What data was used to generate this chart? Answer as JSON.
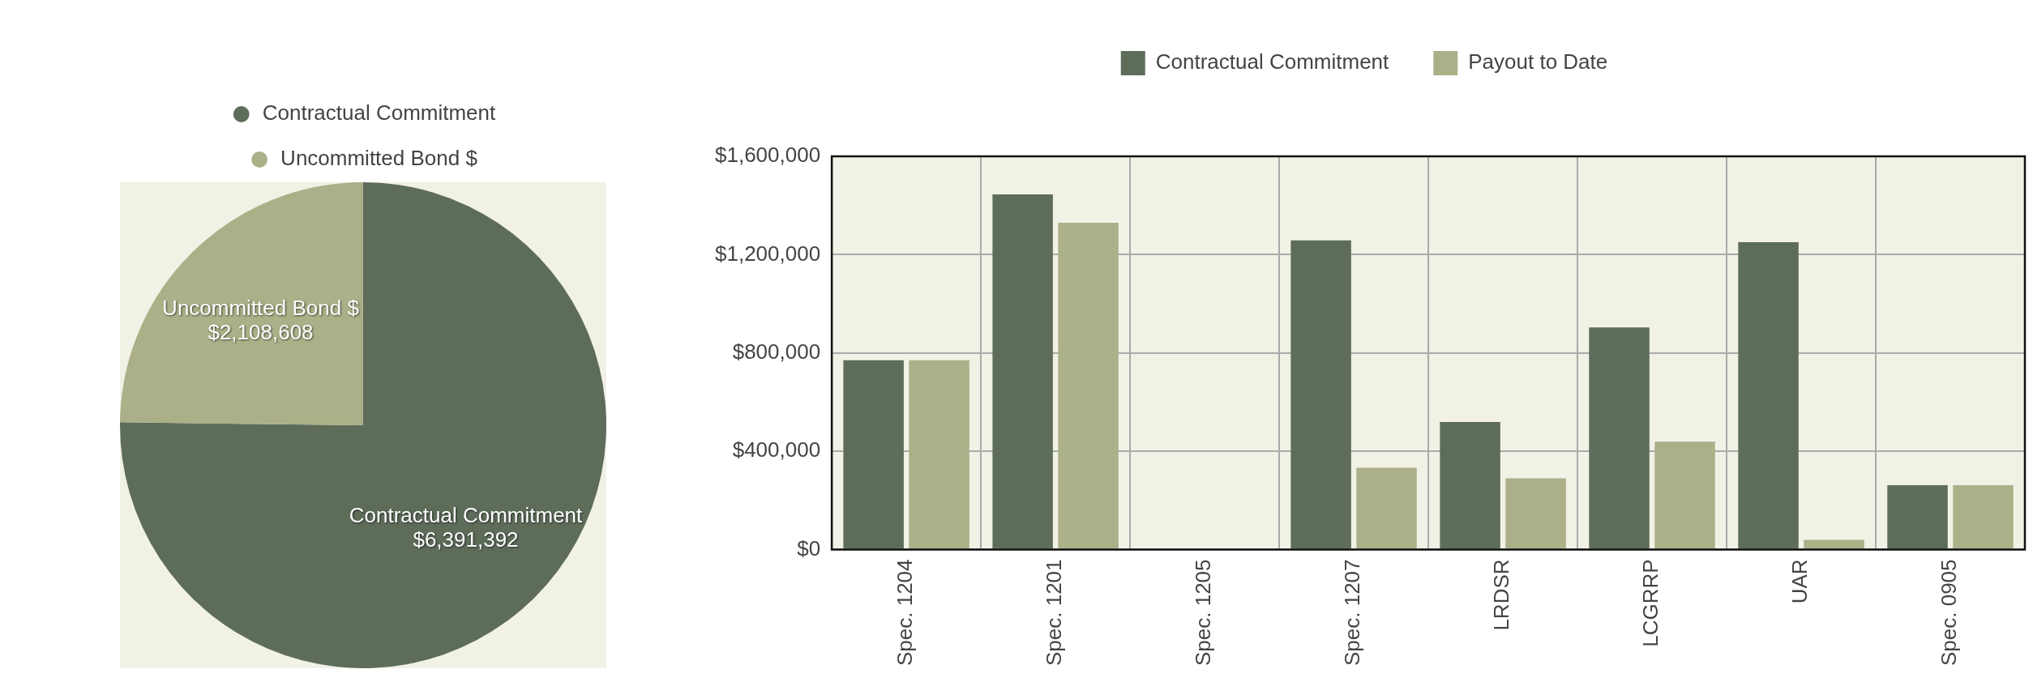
{
  "chart_data": [
    {
      "type": "pie",
      "categories": [
        "Contractual Commitment",
        "Uncommitted Bond $"
      ],
      "values": [
        6391392,
        2108608
      ],
      "colors": [
        "#5d6d5a",
        "#acb088"
      ],
      "value_labels": [
        "$6,391,392",
        "$2,108,608"
      ],
      "legend": "top"
    },
    {
      "type": "bar",
      "categories": [
        "Spec. 1204",
        "Spec. 1201",
        "Spec. 1205",
        "Spec. 1207",
        "LRDSR",
        "LCGRRP",
        "UAR",
        "Spec. 0905"
      ],
      "series": [
        {
          "name": "Contractual Commitment",
          "color": "#5d6d5a",
          "values": [
            770000,
            1445000,
            0,
            1258000,
            519000,
            904000,
            1251000,
            262000
          ]
        },
        {
          "name": "Payout to Date",
          "color": "#acb088",
          "values": [
            770000,
            1330000,
            0,
            333000,
            290000,
            439000,
            39000,
            262000
          ]
        }
      ],
      "ylim": [
        0,
        1600000
      ],
      "yticks": [
        {
          "value": 0,
          "label": "$0"
        },
        {
          "value": 400000,
          "label": "$400,000"
        },
        {
          "value": 800000,
          "label": "$800,000"
        },
        {
          "value": 1200000,
          "label": "$1,200,000"
        },
        {
          "value": 1600000,
          "label": "$1,600,000"
        }
      ],
      "grid": true,
      "legend": "top"
    }
  ]
}
